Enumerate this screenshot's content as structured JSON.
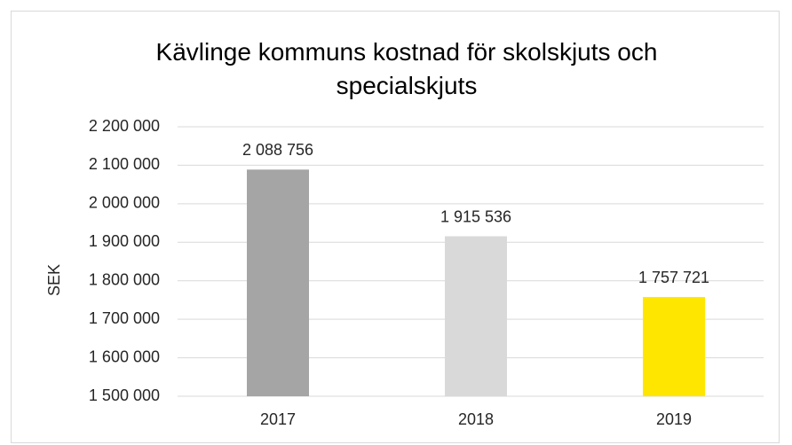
{
  "chart_data": {
    "type": "bar",
    "title": "Kävlinge kommuns kostnad för skolskjuts och specialskjuts",
    "y_label": "SEK",
    "categories": [
      "2017",
      "2018",
      "2019"
    ],
    "values": [
      2088756,
      1915536,
      1757721
    ],
    "value_labels": [
      "2 088 756",
      "1 915 536",
      "1 757 721"
    ],
    "colors": [
      "#a5a5a5",
      "#d9d9d9",
      "#ffe600"
    ],
    "ylim": [
      1500000,
      2200000
    ],
    "yticks": [
      {
        "value": 1500000,
        "label": "1 500 000"
      },
      {
        "value": 1600000,
        "label": "1 600 000"
      },
      {
        "value": 1700000,
        "label": "1 700 000"
      },
      {
        "value": 1800000,
        "label": "1 800 000"
      },
      {
        "value": 1900000,
        "label": "1 900 000"
      },
      {
        "value": 2000000,
        "label": "2 000 000"
      },
      {
        "value": 2100000,
        "label": "2 100 000"
      },
      {
        "value": 2200000,
        "label": "2 200 000"
      }
    ],
    "grid": true
  }
}
